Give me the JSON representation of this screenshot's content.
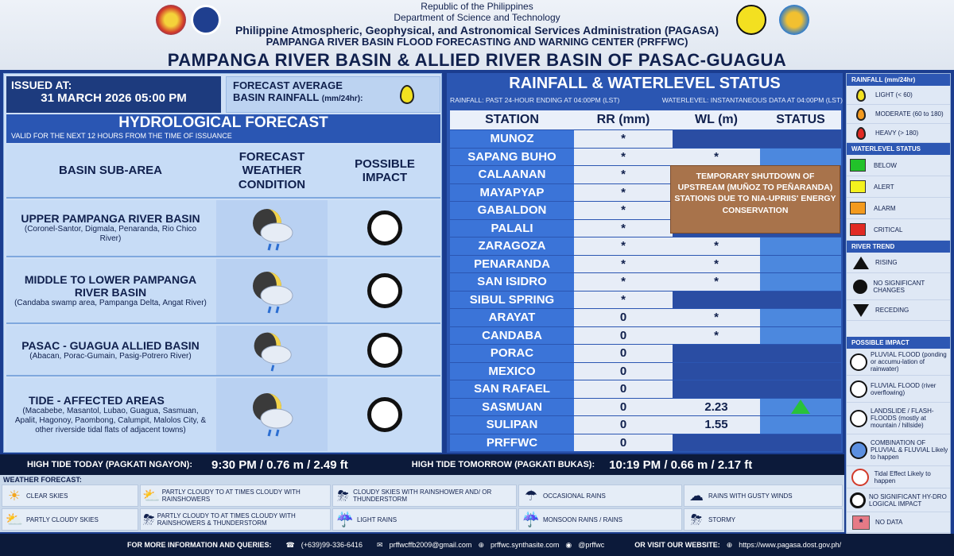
{
  "header": {
    "line1": "Republic of the Philippines",
    "line2": "Department of Science and Technology",
    "line3": "Philippine Atmospheric, Geophysical, and Astronomical Services Administration (PAGASA)",
    "line4": "PAMPANGA RIVER BASIN FLOOD FORECASTING AND WARNING CENTER (PRFFWC)",
    "title": "PAMPANGA RIVER BASIN & ALLIED RIVER BASIN OF PASAC-GUAGUA"
  },
  "issued": {
    "label": "ISSUED AT:",
    "value": "31 MARCH 2026   05:00 PM"
  },
  "forecast_avg": {
    "line1": "FORECAST AVERAGE",
    "line2": "BASIN RAINFALL",
    "unit": "(mm/24hr):"
  },
  "hydro": {
    "title": "HYDROLOGICAL FORECAST",
    "valid": "VALID FOR THE NEXT 12 HOURS FROM THE TIME OF ISSUANCE",
    "col1": "BASIN SUB-AREA",
    "col2": "FORECAST WEATHER CONDITION",
    "col3": "POSSIBLE IMPACT",
    "rows": [
      {
        "name": "UPPER PAMPANGA RIVER BASIN",
        "desc": "(Coronel-Santor, Digmala, Penaranda, Rio Chico River)"
      },
      {
        "name": "MIDDLE TO LOWER PAMPANGA RIVER BASIN",
        "desc": "(Candaba swamp area, Pampanga Delta, Angat River)"
      },
      {
        "name": "PASAC - GUAGUA ALLIED BASIN",
        "desc": "(Abacan, Porac-Gumain, Pasig-Potrero River)"
      },
      {
        "name": "TIDE - AFFECTED AREAS",
        "desc": "(Macabebe, Masantol, Lubao, Guagua, Sasmuan, Apalit, Hagonoy, Paombong, Calumpit, Malolos City, & other riverside tidal flats of adjacent towns)"
      }
    ]
  },
  "rainfall": {
    "title": "RAINFALL & WATERLEVEL STATUS",
    "sub_left": "RAINFALL: PAST 24-HOUR ENDING AT 04:00PM (LST)",
    "sub_right": "WATERLEVEL: INSTANTANEOUS DATA AT 04:00PM (LST)",
    "headers": [
      "STATION",
      "RR (mm)",
      "WL (m)",
      "STATUS"
    ],
    "stations": [
      {
        "name": "MUNOZ",
        "rr": "*",
        "wl": ""
      },
      {
        "name": "SAPANG BUHO",
        "rr": "*",
        "wl": "*"
      },
      {
        "name": "CALAANAN",
        "rr": "*",
        "wl": ""
      },
      {
        "name": "MAYAPYAP",
        "rr": "*",
        "wl": ""
      },
      {
        "name": "GABALDON",
        "rr": "*",
        "wl": ""
      },
      {
        "name": "PALALI",
        "rr": "*",
        "wl": ""
      },
      {
        "name": "ZARAGOZA",
        "rr": "*",
        "wl": "*"
      },
      {
        "name": "PENARANDA",
        "rr": "*",
        "wl": "*"
      },
      {
        "name": "SAN ISIDRO",
        "rr": "*",
        "wl": "*"
      },
      {
        "name": "SIBUL SPRING",
        "rr": "*",
        "wl": ""
      },
      {
        "name": "ARAYAT",
        "rr": "0",
        "wl": "*"
      },
      {
        "name": "CANDABA",
        "rr": "0",
        "wl": "*"
      },
      {
        "name": "PORAC",
        "rr": "0",
        "wl": ""
      },
      {
        "name": "MEXICO",
        "rr": "0",
        "wl": ""
      },
      {
        "name": "SAN RAFAEL",
        "rr": "0",
        "wl": ""
      },
      {
        "name": "SASMUAN",
        "rr": "0",
        "wl": "2.23"
      },
      {
        "name": "SULIPAN",
        "rr": "0",
        "wl": "1.55"
      },
      {
        "name": "PRFFWC",
        "rr": "0",
        "wl": ""
      }
    ],
    "shutdown": "TEMPORARY SHUTDOWN OF UPSTREAM (MUÑOZ TO PEÑARANDA) STATIONS DUE TO NIA-UPRIIS' ENERGY CONSERVATION"
  },
  "tide": {
    "today_label": "HIGH TIDE TODAY (PAGKATI NGAYON):",
    "today_value": "9:30 PM / 0.76 m /  2.49 ft",
    "tomorrow_label": "HIGH TIDE TOMORROW (PAGKATI BUKAS):",
    "tomorrow_value": "10:19 PM  / 0.66 m /  2.17 ft"
  },
  "weather_forecast": {
    "label": "WEATHER FORECAST:",
    "items": [
      "CLEAR SKIES",
      "PARTLY CLOUDY TO AT TIMES CLOUDY WITH RAINSHOWERS",
      "CLOUDY SKIES WITH RAINSHOWER AND/ OR THUNDERSTORM",
      "OCCASIONAL RAINS",
      "RAINS WITH GUSTY WINDS",
      "PARTLY CLOUDY SKIES",
      "PARTLY CLOUDY TO AT TIMES CLOUDY WITH RAINSHOWERS & THUNDERSTORM",
      "LIGHT RAINS",
      "MONSOON RAINS / RAINS",
      "STORMY"
    ]
  },
  "legend": {
    "rainfall_head": "RAINFALL (mm/24hr)",
    "rainfall": [
      "LIGHT (< 60)",
      "MODERATE (60 to 180)",
      "HEAVY (> 180)"
    ],
    "wl_head": "WATERLEVEL STATUS",
    "wl": [
      {
        "label": "BELOW",
        "color": "#22c22a"
      },
      {
        "label": "ALERT",
        "color": "#f4f11e"
      },
      {
        "label": "ALARM",
        "color": "#f39a1e"
      },
      {
        "label": "CRITICAL",
        "color": "#e12a23"
      }
    ],
    "trend_head": "RIVER TREND",
    "trend": [
      "RISING",
      "NO SIGNIFICANT CHANGES",
      "RECEDING"
    ],
    "impact_head": "POSSIBLE IMPACT",
    "impact": [
      "PLUVIAL FLOOD (ponding or accumu-lation of rainwater)",
      "FLUVIAL FLOOD (river overflowing)",
      "LANDSLIDE / FLASH-FLOODS (mostly at mountain / hillside)",
      "COMBINATION OF PLUVIAL & FLUVIAL Likely to happen",
      "Tidal Effect Likely to happen",
      "NO SIGNIFICANT HY-DRO LOGICAL IMPACT",
      "NO DATA"
    ]
  },
  "footer": {
    "label": "FOR MORE INFORMATION AND QUERIES:",
    "phone": "(+639)99-336-6416",
    "email": "prffwcffb2009@gmail.com",
    "site": "prffwc.synthasite.com",
    "social": "@prffwc",
    "visit": "OR VISIT OUR WEBSITE:",
    "url": "https://www.pagasa.dost.gov.ph/"
  },
  "colors": {
    "panel_blue": "#2b56b2",
    "rising": "#29c23a"
  }
}
